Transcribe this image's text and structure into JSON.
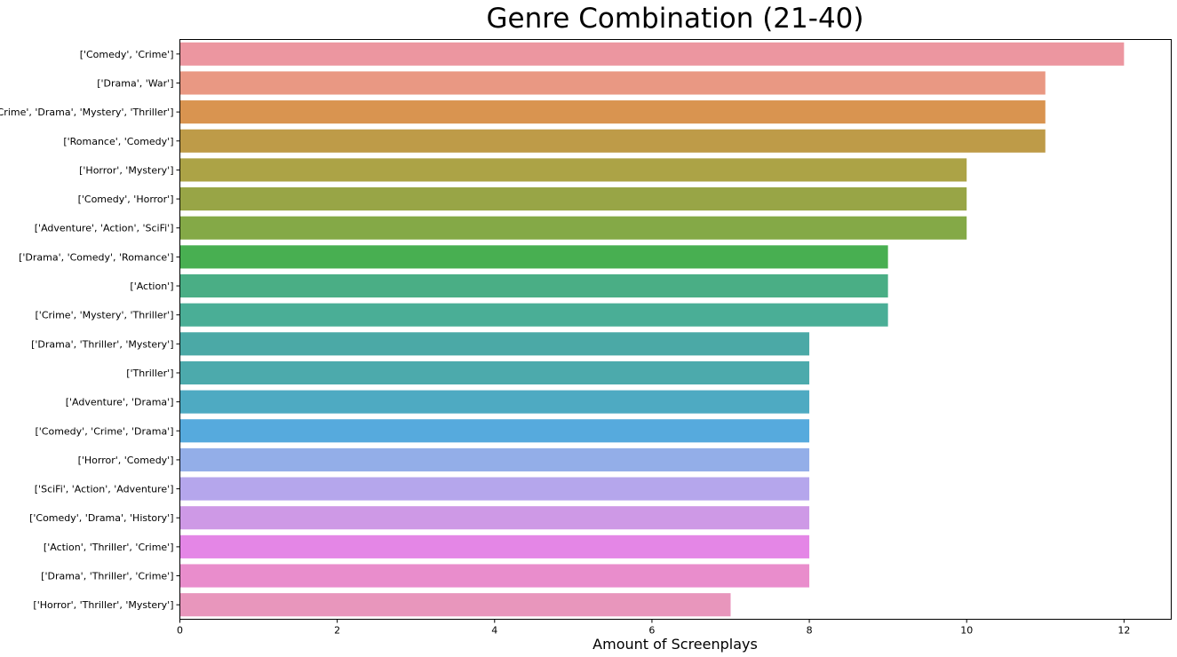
{
  "chart_data": {
    "type": "bar",
    "orientation": "horizontal",
    "title": "Genre Combination (21-40)",
    "xlabel": "Amount of Screenplays",
    "ylabel": "",
    "xlim": [
      0,
      12.6
    ],
    "xticks": [
      0,
      2,
      4,
      6,
      8,
      10,
      12
    ],
    "grid": false,
    "categories": [
      "['Comedy', 'Crime']",
      "['Drama', 'War']",
      "['Crime', 'Drama', 'Mystery', 'Thriller']",
      "['Romance', 'Comedy']",
      "['Horror', 'Mystery']",
      "['Comedy', 'Horror']",
      "['Adventure', 'Action', 'SciFi']",
      "['Drama', 'Comedy', 'Romance']",
      "['Action']",
      "['Crime', 'Mystery', 'Thriller']",
      "['Drama', 'Thriller', 'Mystery']",
      "['Thriller']",
      "['Adventure', 'Drama']",
      "['Comedy', 'Crime', 'Drama']",
      "['Horror', 'Comedy']",
      "['SciFi', 'Action', 'Adventure']",
      "['Comedy', 'Drama', 'History']",
      "['Action', 'Thriller', 'Crime']",
      "['Drama', 'Thriller', 'Crime']",
      "['Horror', 'Thriller', 'Mystery']"
    ],
    "values": [
      12,
      11,
      11,
      11,
      10,
      10,
      10,
      9,
      9,
      9,
      8,
      8,
      8,
      8,
      8,
      8,
      8,
      8,
      8,
      7
    ],
    "colors": [
      "#ec96a0",
      "#e99883",
      "#d99450",
      "#be9b48",
      "#aca346",
      "#98a546",
      "#84a947",
      "#48af51",
      "#4aae85",
      "#4aae96",
      "#4ba9a6",
      "#4caaac",
      "#4eaac2",
      "#56aadd",
      "#93aee8",
      "#b5a6ec",
      "#ce99e6",
      "#e486e6",
      "#e98dcc",
      "#e896bc"
    ]
  }
}
